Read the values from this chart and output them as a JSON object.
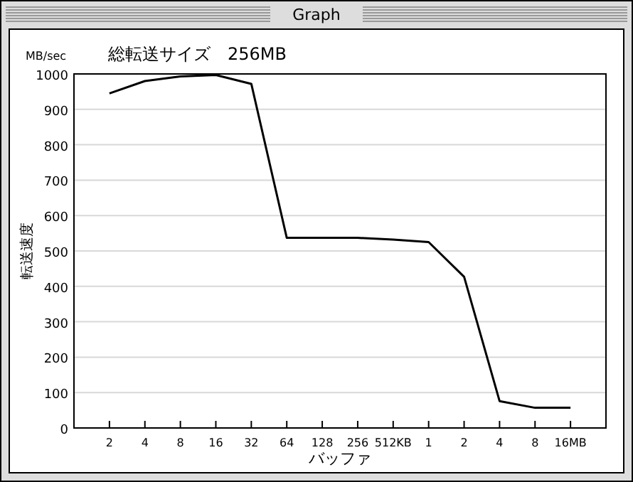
{
  "chart_data": {
    "type": "line",
    "title": "Graph",
    "subtitle": "総転送サイズ　256MB",
    "xlabel": "バッファ",
    "ylabel": "転送速度",
    "annotations": [
      "MB/sec"
    ],
    "categories": [
      "2",
      "4",
      "8",
      "16",
      "32",
      "64",
      "128",
      "256",
      "512KB",
      "1",
      "2",
      "4",
      "8",
      "16MB"
    ],
    "series": [
      {
        "color": "#000000",
        "values": [
          945,
          980,
          993,
          997,
          972,
          537,
          537,
          537,
          532,
          525,
          427,
          76,
          57,
          57
        ]
      }
    ],
    "ylim": [
      0,
      1000
    ],
    "yticks": [
      0,
      100,
      200,
      300,
      400,
      500,
      600,
      700,
      800,
      900,
      1000
    ],
    "grid": "y",
    "marker": "none",
    "line_style": "solid"
  }
}
